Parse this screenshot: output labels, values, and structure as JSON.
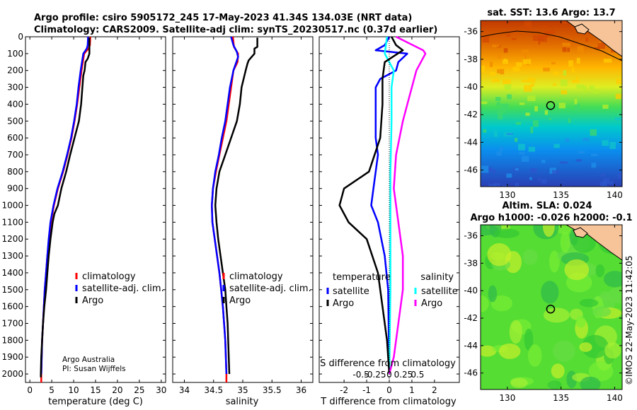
{
  "header": {
    "line1": "Argo profile: csiro 5905172_245 17-May-2023 41.34S 134.03E (NRT data)",
    "line2": "Climatology: CARS2009. Satellite-adj clim: synTS_20230517.nc (0.37d earlier)"
  },
  "colors": {
    "climatology": "#ff0000",
    "satellite": "#0000ff",
    "argo": "#000000",
    "t_sat": "#00ffff",
    "s_argo": "#ff00ff"
  },
  "chart_data": [
    {
      "type": "line",
      "id": "temperature",
      "xlabel": "temperature (deg C)",
      "ylabel": "",
      "xlim": [
        -1,
        31
      ],
      "ylim": [
        2050,
        0
      ],
      "xticks": [
        0,
        5,
        10,
        15,
        20,
        25,
        30
      ],
      "yticks": [
        0,
        100,
        200,
        300,
        400,
        500,
        600,
        700,
        800,
        900,
        1000,
        1100,
        1200,
        1300,
        1400,
        1500,
        1600,
        1700,
        1800,
        1900,
        2000
      ],
      "legend": [
        "climatology",
        "satellite-adj. clim.",
        "Argo"
      ],
      "footnote": [
        "Argo Australia",
        "PI: Susan Wijffels"
      ],
      "series": [
        {
          "name": "climatology",
          "color": "#ff0000",
          "points": [
            [
              13.8,
              0
            ],
            [
              13.7,
              50
            ],
            [
              13.4,
              70
            ],
            [
              12.4,
              100
            ],
            [
              11.8,
              200
            ],
            [
              11.3,
              300
            ],
            [
              10.8,
              400
            ],
            [
              10.2,
              500
            ],
            [
              9.5,
              600
            ],
            [
              8.6,
              700
            ],
            [
              7.6,
              800
            ],
            [
              6.4,
              900
            ],
            [
              5.5,
              1000
            ],
            [
              4.8,
              1100
            ],
            [
              4.4,
              1200
            ],
            [
              4.0,
              1300
            ],
            [
              3.7,
              1400
            ],
            [
              3.4,
              1500
            ],
            [
              3.2,
              1600
            ],
            [
              3.0,
              1700
            ],
            [
              2.8,
              1800
            ],
            [
              2.7,
              1900
            ],
            [
              2.6,
              2000
            ],
            [
              2.6,
              2050
            ]
          ]
        },
        {
          "name": "satellite-adj. clim.",
          "color": "#0000ff",
          "points": [
            [
              13.3,
              0
            ],
            [
              13.2,
              50
            ],
            [
              13.0,
              70
            ],
            [
              12.2,
              100
            ],
            [
              11.6,
              200
            ],
            [
              11.1,
              300
            ],
            [
              10.7,
              400
            ],
            [
              10.1,
              500
            ],
            [
              9.4,
              600
            ],
            [
              8.5,
              700
            ],
            [
              7.5,
              800
            ],
            [
              6.3,
              900
            ],
            [
              5.4,
              1000
            ],
            [
              4.7,
              1100
            ],
            [
              4.3,
              1200
            ],
            [
              4.0,
              1300
            ],
            [
              3.7,
              1400
            ],
            [
              3.4,
              1500
            ],
            [
              3.2,
              1600
            ],
            [
              3.0,
              1700
            ],
            [
              2.8,
              1800
            ],
            [
              2.7,
              1900
            ],
            [
              2.6,
              2000
            ]
          ]
        },
        {
          "name": "Argo",
          "color": "#000000",
          "points": [
            [
              13.6,
              5
            ],
            [
              13.6,
              100
            ],
            [
              13.2,
              130
            ],
            [
              12.7,
              150
            ],
            [
              12.5,
              200
            ],
            [
              12.2,
              230
            ],
            [
              12.0,
              300
            ],
            [
              11.7,
              400
            ],
            [
              11.2,
              500
            ],
            [
              10.2,
              600
            ],
            [
              9.2,
              700
            ],
            [
              8.3,
              800
            ],
            [
              7.2,
              900
            ],
            [
              6.4,
              1000
            ],
            [
              5.6,
              1050
            ],
            [
              5.2,
              1100
            ],
            [
              4.7,
              1200
            ],
            [
              4.3,
              1300
            ],
            [
              4.0,
              1400
            ],
            [
              3.7,
              1500
            ],
            [
              3.3,
              1600
            ],
            [
              3.0,
              1700
            ],
            [
              2.8,
              1800
            ],
            [
              2.6,
              1900
            ],
            [
              2.5,
              2000
            ],
            [
              2.5,
              2020
            ]
          ]
        }
      ]
    },
    {
      "type": "line",
      "id": "salinity",
      "xlabel": "salinity",
      "ylabel": "",
      "xlim": [
        33.8,
        36.2
      ],
      "ylim": [
        2050,
        0
      ],
      "xticks": [
        34,
        34.5,
        35,
        35.5,
        36
      ],
      "legend": [
        "climatology",
        "satellite-adj. clim.",
        "Argo"
      ],
      "series": [
        {
          "name": "climatology",
          "color": "#ff0000",
          "points": [
            [
              34.83,
              0
            ],
            [
              34.85,
              60
            ],
            [
              34.92,
              100
            ],
            [
              34.91,
              150
            ],
            [
              34.84,
              200
            ],
            [
              34.8,
              300
            ],
            [
              34.76,
              400
            ],
            [
              34.72,
              500
            ],
            [
              34.66,
              600
            ],
            [
              34.6,
              700
            ],
            [
              34.54,
              800
            ],
            [
              34.49,
              900
            ],
            [
              34.47,
              1000
            ],
            [
              34.48,
              1100
            ],
            [
              34.52,
              1200
            ],
            [
              34.56,
              1300
            ],
            [
              34.6,
              1400
            ],
            [
              34.63,
              1500
            ],
            [
              34.66,
              1600
            ],
            [
              34.68,
              1700
            ],
            [
              34.7,
              1800
            ],
            [
              34.71,
              1900
            ],
            [
              34.72,
              2000
            ],
            [
              34.72,
              2050
            ]
          ]
        },
        {
          "name": "satellite-adj. clim.",
          "color": "#0000ff",
          "points": [
            [
              34.8,
              0
            ],
            [
              34.84,
              50
            ],
            [
              34.9,
              90
            ],
            [
              34.92,
              120
            ],
            [
              34.84,
              200
            ],
            [
              34.78,
              300
            ],
            [
              34.74,
              400
            ],
            [
              34.7,
              500
            ],
            [
              34.64,
              600
            ],
            [
              34.59,
              700
            ],
            [
              34.53,
              800
            ],
            [
              34.49,
              900
            ],
            [
              34.47,
              1000
            ],
            [
              34.48,
              1100
            ],
            [
              34.52,
              1200
            ],
            [
              34.56,
              1300
            ],
            [
              34.6,
              1400
            ],
            [
              34.63,
              1500
            ],
            [
              34.66,
              1600
            ],
            [
              34.68,
              1700
            ],
            [
              34.7,
              1800
            ],
            [
              34.71,
              1900
            ],
            [
              34.72,
              2000
            ]
          ]
        },
        {
          "name": "Argo",
          "color": "#000000",
          "points": [
            [
              35.25,
              5
            ],
            [
              35.25,
              60
            ],
            [
              35.2,
              70
            ],
            [
              35.2,
              100
            ],
            [
              35.1,
              140
            ],
            [
              35.08,
              160
            ],
            [
              35.05,
              200
            ],
            [
              34.98,
              300
            ],
            [
              34.95,
              400
            ],
            [
              34.9,
              500
            ],
            [
              34.8,
              600
            ],
            [
              34.7,
              700
            ],
            [
              34.6,
              800
            ],
            [
              34.55,
              900
            ],
            [
              34.53,
              1000
            ],
            [
              34.55,
              1100
            ],
            [
              34.58,
              1200
            ],
            [
              34.62,
              1300
            ],
            [
              34.66,
              1400
            ],
            [
              34.7,
              1500
            ],
            [
              34.72,
              1600
            ],
            [
              34.74,
              1700
            ],
            [
              34.75,
              1800
            ],
            [
              34.76,
              1900
            ],
            [
              34.77,
              2000
            ]
          ]
        }
      ]
    },
    {
      "type": "line",
      "id": "difference",
      "xlabel": "T difference from climatology",
      "x2label": "S difference from climatology",
      "xlim": [
        -3.1,
        3.1
      ],
      "ylim": [
        2050,
        0
      ],
      "xticks": [
        -2,
        -1,
        0,
        1,
        2
      ],
      "x2ticks": [
        -0.5,
        -0.25,
        0,
        0.25,
        0.5
      ],
      "x2labels": [
        "-0.5",
        "-0.25",
        "0",
        "0.25",
        "0.5"
      ],
      "legend_left_title": "temperature",
      "legend_right_title": "salinity",
      "legend_left": [
        "satellite",
        "Argo"
      ],
      "legend_right": [
        "satellite",
        "Argo"
      ],
      "series": [
        {
          "name": "T satellite",
          "color": "#0000ff",
          "points": [
            [
              0,
              0
            ],
            [
              -0.2,
              50
            ],
            [
              -0.6,
              80
            ],
            [
              0.8,
              100
            ],
            [
              0.4,
              150
            ],
            [
              0.3,
              200
            ],
            [
              -0.4,
              250
            ],
            [
              -0.6,
              300
            ],
            [
              -0.6,
              400
            ],
            [
              -0.6,
              600
            ],
            [
              -0.5,
              700
            ],
            [
              -0.7,
              900
            ],
            [
              -0.8,
              1000
            ],
            [
              -0.5,
              1100
            ],
            [
              -0.2,
              1300
            ],
            [
              -0.05,
              1500
            ],
            [
              0,
              2000
            ]
          ]
        },
        {
          "name": "S satellite",
          "color": "#00ffff",
          "points": [
            [
              -0.1,
              0
            ],
            [
              -0.2,
              100
            ],
            [
              0.2,
              200
            ],
            [
              0.1,
              300
            ],
            [
              0.1,
              500
            ],
            [
              0.05,
              800
            ],
            [
              0.05,
              1000
            ],
            [
              0.05,
              1500
            ],
            [
              0,
              2000
            ]
          ]
        },
        {
          "name": "T Argo",
          "color": "#000000",
          "points": [
            [
              0.1,
              0
            ],
            [
              0.3,
              50
            ],
            [
              0.6,
              80
            ],
            [
              -0.2,
              150
            ],
            [
              -0.3,
              250
            ],
            [
              -0.3,
              400
            ],
            [
              -0.4,
              600
            ],
            [
              -0.9,
              800
            ],
            [
              -2.0,
              900
            ],
            [
              -2.2,
              1000
            ],
            [
              -1.8,
              1100
            ],
            [
              -1.0,
              1200
            ],
            [
              -0.5,
              1400
            ],
            [
              -0.3,
              1600
            ],
            [
              -0.1,
              1800
            ],
            [
              0,
              2000
            ]
          ]
        },
        {
          "name": "S Argo",
          "color": "#ff00ff",
          "points": [
            [
              0.3,
              0
            ],
            [
              1.5,
              80
            ],
            [
              1.6,
              100
            ],
            [
              1.2,
              200
            ],
            [
              1.0,
              300
            ],
            [
              0.8,
              400
            ],
            [
              0.6,
              500
            ],
            [
              0.3,
              700
            ],
            [
              0.2,
              900
            ],
            [
              0.3,
              1000
            ],
            [
              0.4,
              1100
            ],
            [
              0.5,
              1200
            ],
            [
              0.6,
              1300
            ],
            [
              0.6,
              1500
            ],
            [
              0.4,
              1700
            ],
            [
              0.2,
              1900
            ],
            [
              0,
              2000
            ]
          ]
        }
      ]
    },
    {
      "type": "heatmap",
      "id": "sst-map",
      "title": "sat. SST: 13.6 Argo: 13.7",
      "xlim": [
        127.5,
        140.7
      ],
      "ylim": [
        -47.2,
        -35.2
      ],
      "xticks": [
        130,
        135,
        140
      ],
      "yticks": [
        -36,
        -38,
        -40,
        -42,
        -44,
        -46
      ],
      "marker": [
        134.03,
        -41.34
      ],
      "gradient": [
        "#cc3300",
        "#ff8800",
        "#ffcc00",
        "#66ee33",
        "#00cccc",
        "#0088ff",
        "#2233bb"
      ]
    },
    {
      "type": "heatmap",
      "id": "sla-map",
      "title1": "Altim. SLA: 0.024",
      "title2": "Argo h1000: -0.026 h2000: -0.1",
      "xlim": [
        127.5,
        140.7
      ],
      "ylim": [
        -47.2,
        -35.2
      ],
      "xticks": [
        130,
        135,
        140
      ],
      "yticks": [
        -36,
        -38,
        -40,
        -42,
        -44,
        -46
      ],
      "marker": [
        134.03,
        -41.34
      ]
    }
  ],
  "credit": "©IMOS 22-May-2023 11:42:05"
}
